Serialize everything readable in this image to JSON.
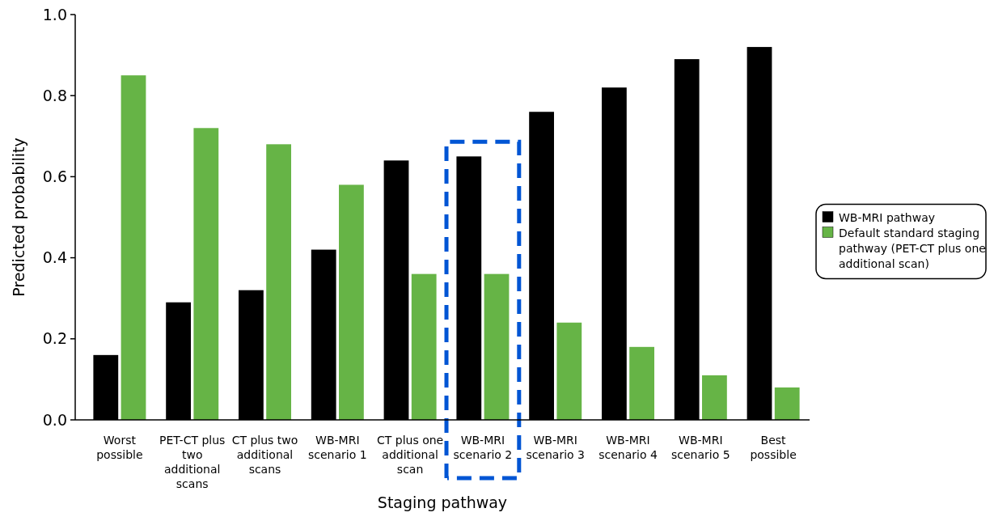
{
  "chart_data": {
    "type": "bar",
    "xlabel": "Staging pathway",
    "ylabel": "Predicted probability",
    "categories": [
      "Worst possible",
      "PET-CT plus two additional scans",
      "CT plus two additional scans",
      "WB-MRI scenario 1",
      "CT plus one additional scan",
      "WB-MRI scenario 2",
      "WB-MRI scenario 3",
      "WB-MRI scenario 4",
      "WB-MRI scenario 5",
      "Best possible"
    ],
    "series": [
      {
        "name": "WB-MRI pathway",
        "color": "#000000",
        "values": [
          0.16,
          0.29,
          0.32,
          0.42,
          0.64,
          0.65,
          0.76,
          0.82,
          0.89,
          0.92
        ]
      },
      {
        "name": "Default standard staging pathway (PET-CT plus one additional scan)",
        "color": "#66b446",
        "values": [
          0.85,
          0.72,
          0.68,
          0.58,
          0.36,
          0.36,
          0.24,
          0.18,
          0.11,
          0.08
        ]
      }
    ],
    "ylim": [
      0,
      1
    ],
    "yticks": [
      {
        "value": 0,
        "label": "0.0"
      },
      0.2,
      0.4,
      0.6,
      0.8,
      {
        "value": 1,
        "label": "1.0"
      }
    ],
    "legend": "right",
    "grid": false
  }
}
